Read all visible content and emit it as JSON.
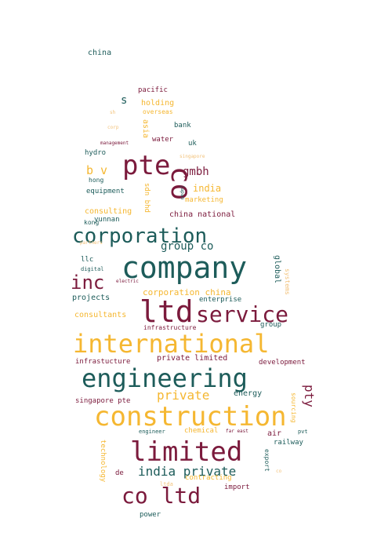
{
  "palette": {
    "teal": "#1d5c5a",
    "maroon": "#7b1a3c",
    "gold": "#f5b731",
    "peach": "#f2c27a"
  },
  "words": [
    {
      "text": "china",
      "color": "teal"
    },
    {
      "text": "pacific",
      "color": "maroon"
    },
    {
      "text": "s",
      "color": "teal"
    },
    {
      "text": "holding",
      "color": "gold"
    },
    {
      "text": "overseas",
      "color": "gold"
    },
    {
      "text": "sh",
      "color": "peach"
    },
    {
      "text": "asia",
      "color": "gold"
    },
    {
      "text": "bank",
      "color": "teal"
    },
    {
      "text": "corp",
      "color": "peach"
    },
    {
      "text": "water",
      "color": "maroon"
    },
    {
      "text": "management",
      "color": "maroon"
    },
    {
      "text": "uk",
      "color": "teal"
    },
    {
      "text": "hydro",
      "color": "teal"
    },
    {
      "text": "singapore",
      "color": "peach"
    },
    {
      "text": "pte",
      "color": "maroon"
    },
    {
      "text": "gmbh",
      "color": "maroon"
    },
    {
      "text": "b v",
      "color": "gold"
    },
    {
      "text": "co",
      "color": "maroon"
    },
    {
      "text": "hong",
      "color": "teal"
    },
    {
      "text": "sdn bhd",
      "color": "gold"
    },
    {
      "text": "japan",
      "color": "teal"
    },
    {
      "text": "india",
      "color": "gold"
    },
    {
      "text": "equipment",
      "color": "teal"
    },
    {
      "text": "marketing",
      "color": "gold"
    },
    {
      "text": "consulting",
      "color": "gold"
    },
    {
      "text": "yunnan",
      "color": "teal"
    },
    {
      "text": "china national",
      "color": "maroon"
    },
    {
      "text": "kong",
      "color": "teal"
    },
    {
      "text": "corporation",
      "color": "teal"
    },
    {
      "text": "partners",
      "color": "peach"
    },
    {
      "text": "group co",
      "color": "teal"
    },
    {
      "text": "company",
      "color": "teal"
    },
    {
      "text": "llc",
      "color": "teal"
    },
    {
      "text": "digital",
      "color": "teal"
    },
    {
      "text": "global",
      "color": "teal"
    },
    {
      "text": "inc",
      "color": "maroon"
    },
    {
      "text": "electric",
      "color": "maroon"
    },
    {
      "text": "systems",
      "color": "peach"
    },
    {
      "text": "corporation china",
      "color": "gold"
    },
    {
      "text": "projects",
      "color": "teal"
    },
    {
      "text": "enterprise",
      "color": "teal"
    },
    {
      "text": "ltd",
      "color": "maroon"
    },
    {
      "text": "service",
      "color": "maroon"
    },
    {
      "text": "consultants",
      "color": "gold"
    },
    {
      "text": "infrastructure",
      "color": "maroon"
    },
    {
      "text": "group",
      "color": "teal"
    },
    {
      "text": "international",
      "color": "gold"
    },
    {
      "text": "infrastucture",
      "color": "maroon"
    },
    {
      "text": "private limited",
      "color": "maroon"
    },
    {
      "text": "development",
      "color": "maroon"
    },
    {
      "text": "engineering",
      "color": "teal"
    },
    {
      "text": "private",
      "color": "gold"
    },
    {
      "text": "energy",
      "color": "teal"
    },
    {
      "text": "pty",
      "color": "maroon"
    },
    {
      "text": "singapore pte",
      "color": "maroon"
    },
    {
      "text": "sourcing",
      "color": "gold"
    },
    {
      "text": "construction",
      "color": "gold"
    },
    {
      "text": "engineer",
      "color": "teal"
    },
    {
      "text": "chemical",
      "color": "gold"
    },
    {
      "text": "far east",
      "color": "maroon"
    },
    {
      "text": "air",
      "color": "maroon"
    },
    {
      "text": "pvt",
      "color": "teal"
    },
    {
      "text": "railway",
      "color": "teal"
    },
    {
      "text": "technology",
      "color": "gold"
    },
    {
      "text": "limited",
      "color": "maroon"
    },
    {
      "text": "export",
      "color": "teal"
    },
    {
      "text": "co",
      "color": "peach"
    },
    {
      "text": "india private",
      "color": "teal"
    },
    {
      "text": "de",
      "color": "maroon"
    },
    {
      "text": "contracting",
      "color": "gold"
    },
    {
      "text": "ltda",
      "color": "peach"
    },
    {
      "text": "co ltd",
      "color": "maroon"
    },
    {
      "text": "import",
      "color": "maroon"
    },
    {
      "text": "power",
      "color": "teal"
    }
  ]
}
